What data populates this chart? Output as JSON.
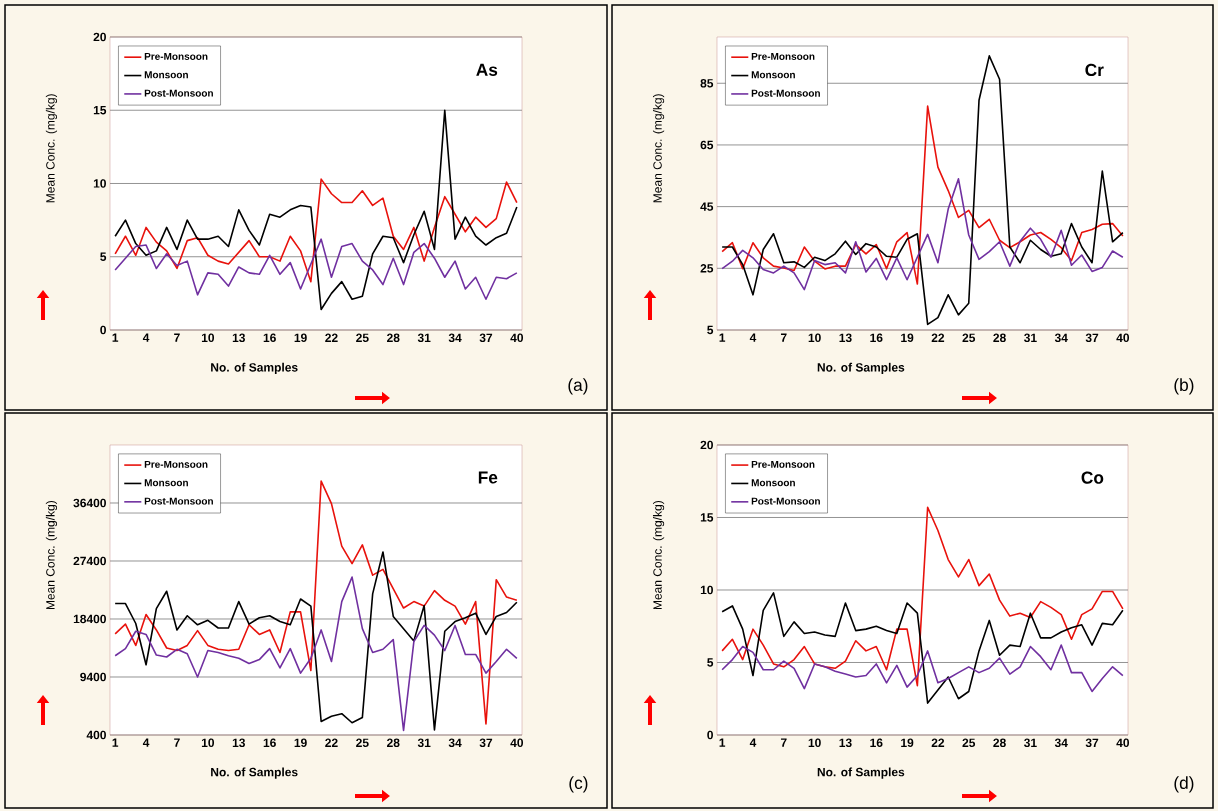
{
  "chart_data": [
    {
      "type": "line",
      "title": "As",
      "xlabel": "No. of Samples",
      "ylabel": "Mean Conc. (mg/kg)",
      "annotations": [
        "(a)"
      ],
      "grid": "y",
      "legend": "top left",
      "x": [
        1,
        2,
        3,
        4,
        5,
        6,
        7,
        8,
        9,
        10,
        11,
        12,
        13,
        14,
        15,
        16,
        17,
        18,
        19,
        20,
        21,
        22,
        23,
        24,
        25,
        26,
        27,
        28,
        29,
        30,
        31,
        32,
        33,
        34,
        35,
        36,
        37,
        38,
        39,
        40
      ],
      "xlim": [
        0.5,
        40.5
      ],
      "xticks": [
        1,
        4,
        7,
        10,
        13,
        16,
        19,
        22,
        25,
        28,
        31,
        34,
        37,
        40
      ],
      "ylim": [
        0,
        20
      ],
      "yticks": [
        0,
        5,
        10,
        15,
        20
      ],
      "series": [
        {
          "name": "Pre-Monsoon",
          "color": "#e8120c",
          "values": [
            5.2,
            6.4,
            5.1,
            7.0,
            6.0,
            5.4,
            4.2,
            6.1,
            6.3,
            5.1,
            4.7,
            4.5,
            5.3,
            6.1,
            5.0,
            5.0,
            4.7,
            6.4,
            5.4,
            3.3,
            10.3,
            9.3,
            8.7,
            8.7,
            9.5,
            8.5,
            9.0,
            6.4,
            5.5,
            7.0,
            4.7,
            7.0,
            9.1,
            7.9,
            6.7,
            7.7,
            7.0,
            7.6,
            10.1,
            8.7
          ]
        },
        {
          "name": "Monsoon",
          "color": "#000000",
          "values": [
            6.4,
            7.5,
            5.9,
            5.1,
            5.4,
            7.0,
            5.5,
            7.5,
            6.2,
            6.2,
            6.4,
            5.7,
            8.2,
            6.8,
            5.8,
            7.9,
            7.7,
            8.2,
            8.5,
            8.4,
            1.4,
            2.5,
            3.3,
            2.1,
            2.3,
            5.2,
            6.4,
            6.3,
            4.6,
            6.5,
            8.1,
            5.5,
            15.0,
            6.2,
            7.7,
            6.4,
            5.8,
            6.3,
            6.6,
            8.4
          ]
        },
        {
          "name": "Post-Monsoon",
          "color": "#7030a0",
          "values": [
            4.1,
            4.9,
            5.7,
            5.8,
            4.2,
            5.2,
            4.4,
            4.7,
            2.4,
            3.9,
            3.8,
            3.0,
            4.3,
            3.9,
            3.8,
            5.1,
            3.8,
            4.6,
            2.8,
            4.5,
            6.2,
            3.6,
            5.7,
            5.9,
            4.7,
            4.1,
            3.1,
            4.9,
            3.1,
            5.3,
            5.9,
            4.9,
            3.6,
            4.7,
            2.8,
            3.6,
            2.1,
            3.6,
            3.5,
            3.9
          ]
        }
      ]
    },
    {
      "type": "line",
      "title": "Cr",
      "xlabel": "No. of Samples",
      "ylabel": "Mean Conc. (mg/kg)",
      "annotations": [
        "(b)"
      ],
      "grid": "y",
      "legend": "top left",
      "x": [
        1,
        2,
        3,
        4,
        5,
        6,
        7,
        8,
        9,
        10,
        11,
        12,
        13,
        14,
        15,
        16,
        17,
        18,
        19,
        20,
        21,
        22,
        23,
        24,
        25,
        26,
        27,
        28,
        29,
        30,
        31,
        32,
        33,
        34,
        35,
        36,
        37,
        38,
        39,
        40
      ],
      "xlim": [
        0.5,
        40.5
      ],
      "xticks": [
        1,
        4,
        7,
        10,
        13,
        16,
        19,
        22,
        25,
        28,
        31,
        34,
        37,
        40
      ],
      "ylim": [
        5,
        100
      ],
      "yticks": [
        5,
        25,
        45,
        65,
        85
      ],
      "series": [
        {
          "name": "Pre-Monsoon",
          "color": "#e8120c",
          "values": [
            30.4,
            33.3,
            24.9,
            33.3,
            28.4,
            25.7,
            25.1,
            24.3,
            31.9,
            27.3,
            24.8,
            25.7,
            25.7,
            32.7,
            29.7,
            32.7,
            24.9,
            33.6,
            36.6,
            19.9,
            77.6,
            57.8,
            50.2,
            41.5,
            43.8,
            38.2,
            40.9,
            34.1,
            31.7,
            33.6,
            35.8,
            36.6,
            34.4,
            31.7,
            27.5,
            36.6,
            37.6,
            39.3,
            39.5,
            35.5
          ]
        },
        {
          "name": "Monsoon",
          "color": "#000000",
          "values": [
            31.9,
            31.9,
            26.2,
            16.4,
            31.1,
            36.2,
            26.8,
            27.1,
            25.3,
            28.6,
            27.5,
            29.7,
            33.8,
            29.5,
            33.0,
            31.9,
            28.9,
            28.6,
            34.4,
            36.2,
            6.8,
            9.0,
            16.4,
            9.9,
            13.7,
            79.5,
            93.9,
            86.3,
            31.9,
            26.8,
            34.1,
            31.1,
            28.9,
            29.7,
            39.5,
            31.9,
            26.8,
            56.5,
            33.6,
            36.6
          ]
        },
        {
          "name": "Post-Monsoon",
          "color": "#7030a0",
          "values": [
            24.9,
            27.3,
            30.8,
            28.4,
            24.6,
            23.5,
            25.7,
            23.5,
            18.1,
            27.5,
            26.2,
            26.8,
            23.5,
            33.6,
            23.8,
            28.2,
            21.3,
            28.4,
            21.3,
            28.6,
            36.0,
            26.8,
            44.2,
            54.0,
            35.8,
            27.9,
            30.4,
            33.6,
            25.7,
            33.8,
            38.0,
            34.4,
            28.6,
            37.3,
            26.0,
            29.3,
            24.0,
            25.3,
            30.6,
            28.6
          ]
        }
      ]
    },
    {
      "type": "line",
      "title": "Fe",
      "xlabel": "No. of Samples",
      "ylabel": "Mean Conc. (mg/kg)",
      "annotations": [
        "(c)"
      ],
      "grid": "y",
      "legend": "top left",
      "x": [
        1,
        2,
        3,
        4,
        5,
        6,
        7,
        8,
        9,
        10,
        11,
        12,
        13,
        14,
        15,
        16,
        17,
        18,
        19,
        20,
        21,
        22,
        23,
        24,
        25,
        26,
        27,
        28,
        29,
        30,
        31,
        32,
        33,
        34,
        35,
        36,
        37,
        38,
        39,
        40
      ],
      "xlim": [
        0.5,
        40.5
      ],
      "xticks": [
        1,
        4,
        7,
        10,
        13,
        16,
        19,
        22,
        25,
        28,
        31,
        34,
        37,
        40
      ],
      "ylim": [
        400,
        45400
      ],
      "yticks": [
        400,
        9400,
        18400,
        27400,
        36400
      ],
      "series": [
        {
          "name": "Pre-Monsoon",
          "color": "#e8120c",
          "values": [
            16100,
            17600,
            14300,
            19100,
            16700,
            13900,
            13500,
            14300,
            16600,
            14300,
            13700,
            13500,
            13700,
            17500,
            16000,
            16700,
            13200,
            19500,
            19500,
            10400,
            39800,
            36300,
            29700,
            27000,
            29900,
            25200,
            26100,
            23100,
            20100,
            21100,
            20400,
            22800,
            21300,
            20400,
            17600,
            21100,
            2100,
            24500,
            21800,
            21300
          ]
        },
        {
          "name": "Monsoon",
          "color": "#000000",
          "values": [
            20800,
            20800,
            17700,
            11300,
            20000,
            22700,
            16700,
            18900,
            17500,
            18200,
            17000,
            17000,
            21100,
            17600,
            18600,
            18900,
            18000,
            17500,
            21500,
            20400,
            2500,
            3300,
            3700,
            2300,
            3100,
            22300,
            28800,
            18800,
            16900,
            15000,
            20500,
            1200,
            16500,
            18000,
            18600,
            19300,
            16000,
            18800,
            19400,
            21000
          ]
        },
        {
          "name": "Post-Monsoon",
          "color": "#7030a0",
          "values": [
            12700,
            13800,
            16500,
            16000,
            12800,
            12500,
            13700,
            13000,
            9400,
            13500,
            13200,
            12700,
            12300,
            11500,
            12100,
            13800,
            10800,
            13800,
            10000,
            12300,
            16700,
            11800,
            21100,
            24900,
            16900,
            13200,
            13700,
            15200,
            1100,
            14900,
            17400,
            15900,
            13500,
            17400,
            12900,
            12900,
            10000,
            11800,
            13700,
            12300
          ]
        }
      ]
    },
    {
      "type": "line",
      "title": "Co",
      "xlabel": "No. of Samples",
      "ylabel": "Mean Conc. (mg/kg)",
      "annotations": [
        "(d)"
      ],
      "grid": "y",
      "legend": "top left",
      "x": [
        1,
        2,
        3,
        4,
        5,
        6,
        7,
        8,
        9,
        10,
        11,
        12,
        13,
        14,
        15,
        16,
        17,
        18,
        19,
        20,
        21,
        22,
        23,
        24,
        25,
        26,
        27,
        28,
        29,
        30,
        31,
        32,
        33,
        34,
        35,
        36,
        37,
        38,
        39,
        40
      ],
      "xlim": [
        0.5,
        40.5
      ],
      "xticks": [
        1,
        4,
        7,
        10,
        13,
        16,
        19,
        22,
        25,
        28,
        31,
        34,
        37,
        40
      ],
      "ylim": [
        0,
        20
      ],
      "yticks": [
        0,
        5,
        10,
        15,
        20
      ],
      "series": [
        {
          "name": "Pre-Monsoon",
          "color": "#e8120c",
          "values": [
            5.8,
            6.6,
            5.2,
            7.3,
            6.2,
            4.9,
            4.7,
            5.2,
            6.1,
            4.9,
            4.7,
            4.6,
            5.1,
            6.5,
            5.8,
            6.1,
            4.5,
            7.3,
            7.3,
            3.4,
            15.7,
            14.1,
            12.1,
            10.9,
            12.1,
            10.3,
            11.1,
            9.3,
            8.2,
            8.4,
            8.1,
            9.2,
            8.8,
            8.3,
            6.6,
            8.3,
            8.7,
            9.9,
            9.9,
            8.7
          ]
        },
        {
          "name": "Monsoon",
          "color": "#000000",
          "values": [
            8.5,
            8.9,
            7.3,
            4.1,
            8.6,
            9.8,
            6.8,
            7.8,
            7.0,
            7.1,
            6.9,
            6.8,
            9.1,
            7.2,
            7.3,
            7.5,
            7.2,
            7.0,
            9.1,
            8.4,
            2.2,
            3.1,
            4.0,
            2.5,
            3.0,
            5.8,
            7.9,
            5.5,
            6.2,
            6.1,
            8.4,
            6.7,
            6.7,
            7.1,
            7.4,
            7.6,
            6.2,
            7.7,
            7.6,
            8.6
          ]
        },
        {
          "name": "Post-Monsoon",
          "color": "#7030a0",
          "values": [
            4.5,
            5.2,
            6.1,
            5.7,
            4.5,
            4.5,
            5.1,
            4.6,
            3.2,
            4.9,
            4.7,
            4.4,
            4.2,
            4.0,
            4.1,
            4.9,
            3.6,
            4.8,
            3.3,
            4.1,
            5.8,
            3.6,
            3.9,
            4.3,
            4.7,
            4.3,
            4.6,
            5.3,
            4.2,
            4.7,
            6.1,
            5.4,
            4.5,
            6.2,
            4.3,
            4.3,
            3.0,
            3.9,
            4.7,
            4.1
          ]
        }
      ]
    }
  ]
}
